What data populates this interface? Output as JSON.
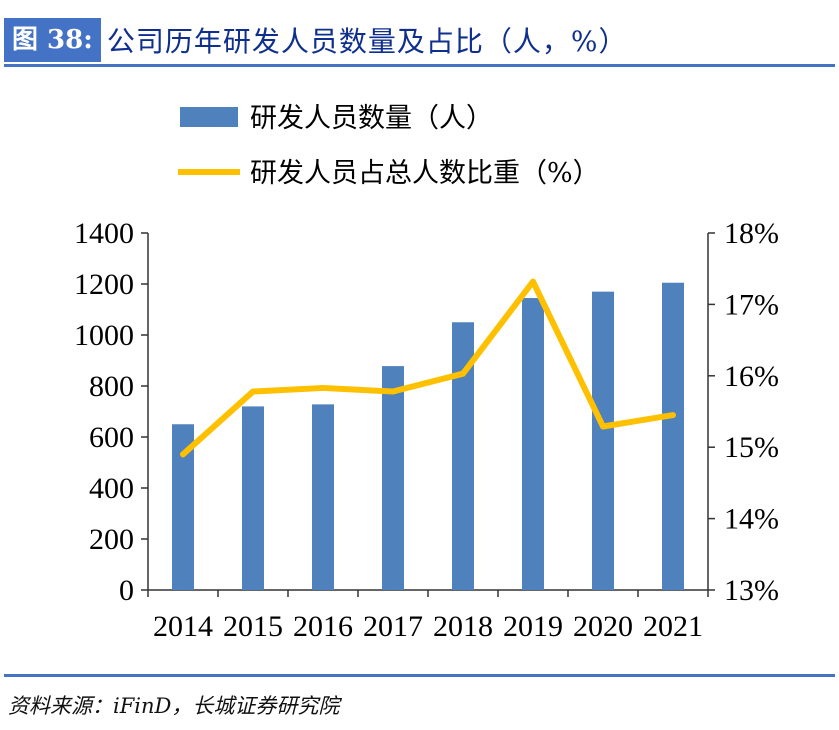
{
  "header": {
    "figure_label": "图 38:",
    "title": "公司历年研发人员数量及占比（人，%）"
  },
  "source": "资料来源：iFinD，长城证券研究院",
  "colors": {
    "bar": "#4F81BD",
    "line": "#FFC000",
    "accent": "#4472C4"
  },
  "chart_data": {
    "type": "bar+line",
    "categories": [
      "2014",
      "2015",
      "2016",
      "2017",
      "2018",
      "2019",
      "2020",
      "2021"
    ],
    "series": [
      {
        "name": "研发人员数量（人）",
        "type": "bar",
        "axis": "left",
        "values": [
          650,
          720,
          728,
          878,
          1050,
          1145,
          1170,
          1205
        ]
      },
      {
        "name": "研发人员占总人数比重（%）",
        "type": "line",
        "axis": "right",
        "values": [
          14.9,
          15.78,
          15.83,
          15.78,
          16.03,
          17.32,
          15.29,
          15.45
        ]
      }
    ],
    "y_left": {
      "min": 0,
      "max": 1400,
      "ticks": [
        "0",
        "200",
        "400",
        "600",
        "800",
        "1000",
        "1200",
        "1400"
      ]
    },
    "y_right": {
      "min": 13,
      "max": 18,
      "ticks": [
        "13%",
        "14%",
        "15%",
        "16%",
        "17%",
        "18%"
      ]
    },
    "legend_position": "top",
    "grid": false
  }
}
